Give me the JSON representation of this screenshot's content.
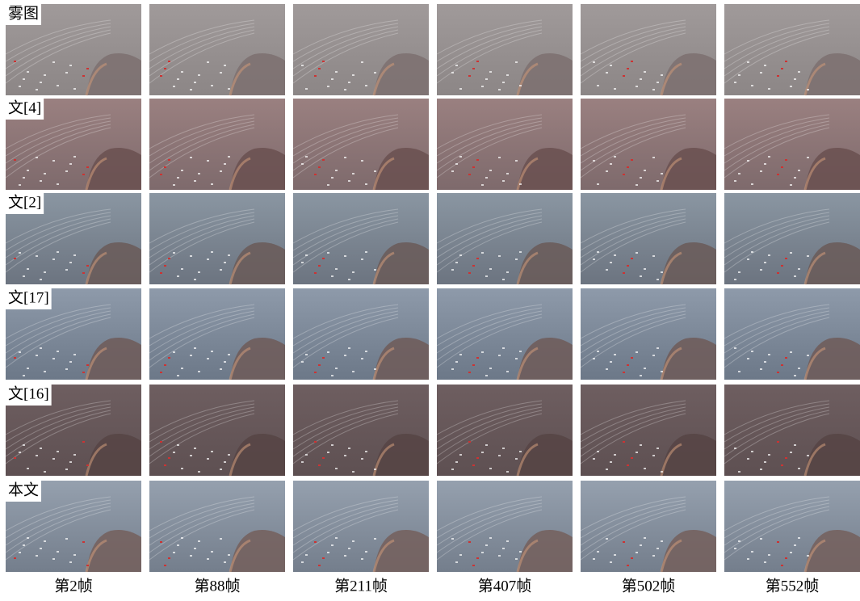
{
  "figure": {
    "row_labels": [
      "雾图",
      "文[4]",
      "文[2]",
      "文[17]",
      "文[16]",
      "本文"
    ],
    "column_labels": [
      "第2帧",
      "第88帧",
      "第211帧",
      "第407帧",
      "第502帧",
      "第552帧"
    ]
  }
}
